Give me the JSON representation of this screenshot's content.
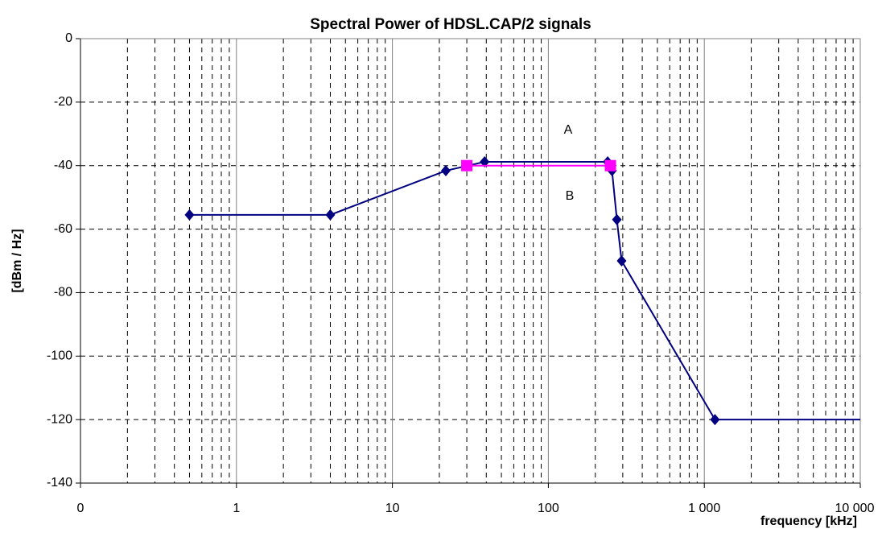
{
  "chart_data": {
    "type": "line",
    "title": "Spectral Power of HDSL.CAP/2 signals",
    "xlabel": "frequency [kHz]",
    "ylabel": "[dBm / Hz]",
    "xscale": "log",
    "xlim": [
      0.1,
      10000
    ],
    "xticks": [
      {
        "value": 0.1,
        "label": "0"
      },
      1,
      10,
      100,
      {
        "value": 1000,
        "label": "1 000"
      },
      {
        "value": 10000,
        "label": "10 000"
      }
    ],
    "ylim": [
      -140,
      0
    ],
    "yticks": [
      0,
      -20,
      -40,
      -60,
      -80,
      -100,
      -120,
      -140
    ],
    "grid": true,
    "series": [
      {
        "name": "A",
        "color": "#000080",
        "marker": "diamond",
        "x": [
          0.5,
          4,
          22,
          39,
          240,
          256,
          275,
          295,
          1170,
          10000
        ],
        "values": [
          -55.5,
          -55.5,
          -41.6,
          -38.8,
          -38.8,
          -41.6,
          -57,
          -70,
          -120,
          -120
        ]
      },
      {
        "name": "B",
        "color": "#ff00ff",
        "marker": "square",
        "x": [
          30,
          250
        ],
        "values": [
          -40,
          -40
        ]
      }
    ],
    "annotations": [
      "A",
      "B"
    ]
  }
}
